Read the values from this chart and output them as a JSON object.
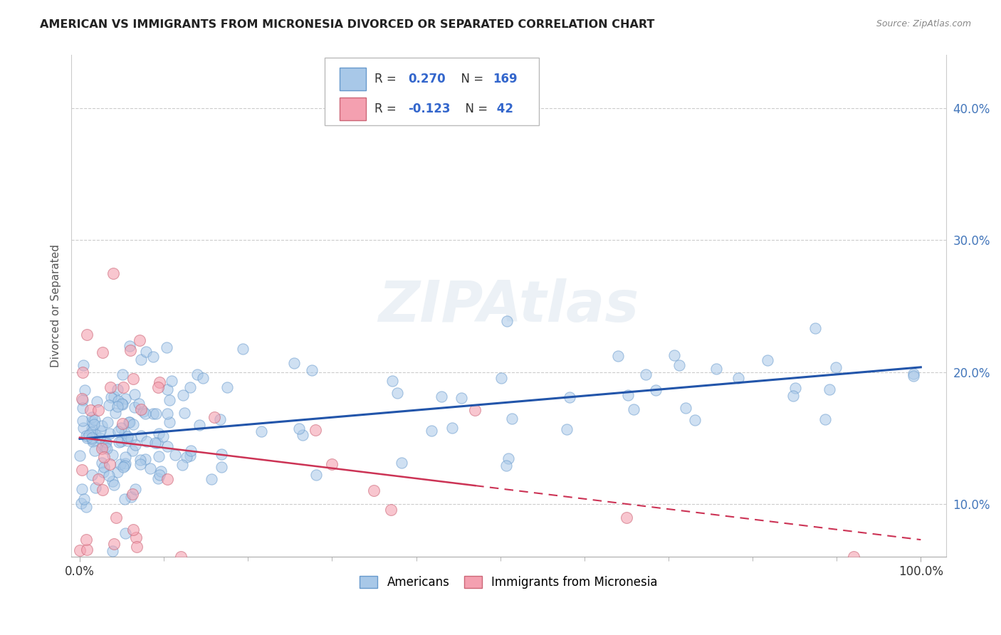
{
  "title": "AMERICAN VS IMMIGRANTS FROM MICRONESIA DIVORCED OR SEPARATED CORRELATION CHART",
  "source": "Source: ZipAtlas.com",
  "ylabel": "Divorced or Separated",
  "blue_color": "#a8c8e8",
  "blue_edge": "#6699cc",
  "pink_color": "#f4a0b0",
  "pink_edge": "#cc6677",
  "trend_blue_color": "#2255aa",
  "trend_pink_color": "#cc3355",
  "watermark": "ZIPAtlas",
  "R1": "0.270",
  "N1": "169",
  "R2": "-0.123",
  "N2": "42",
  "legend_blue_label": "Americans",
  "legend_pink_label": "Immigrants from Micronesia",
  "ytick_labels": [
    "10.0%",
    "20.0%",
    "30.0%",
    "40.0%"
  ],
  "ytick_vals": [
    0.1,
    0.2,
    0.3,
    0.4
  ],
  "xtick_labels": [
    "0.0%",
    "100.0%"
  ],
  "xtick_vals": [
    0.0,
    1.0
  ],
  "axis_label_color": "#4477bb",
  "grid_color": "#cccccc"
}
